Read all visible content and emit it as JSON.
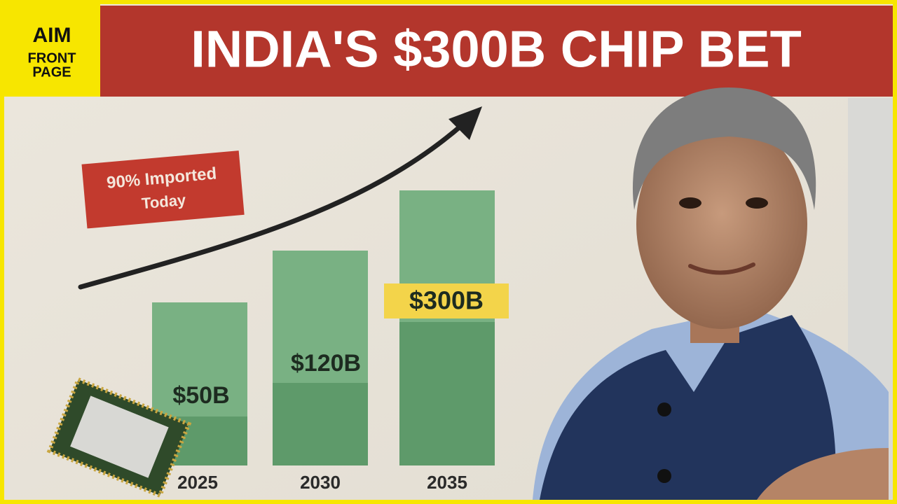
{
  "logo": {
    "mark": "AIM",
    "lines": [
      "FRONT",
      "PAGE"
    ]
  },
  "title": "INDIA'S $300B CHIP BET",
  "callout": [
    "90% Imported",
    "Today"
  ],
  "bars": [
    {
      "year": "2025",
      "label": "$50B"
    },
    {
      "year": "2030",
      "label": "$120B"
    },
    {
      "year": "2035",
      "label": "$300B"
    }
  ]
}
